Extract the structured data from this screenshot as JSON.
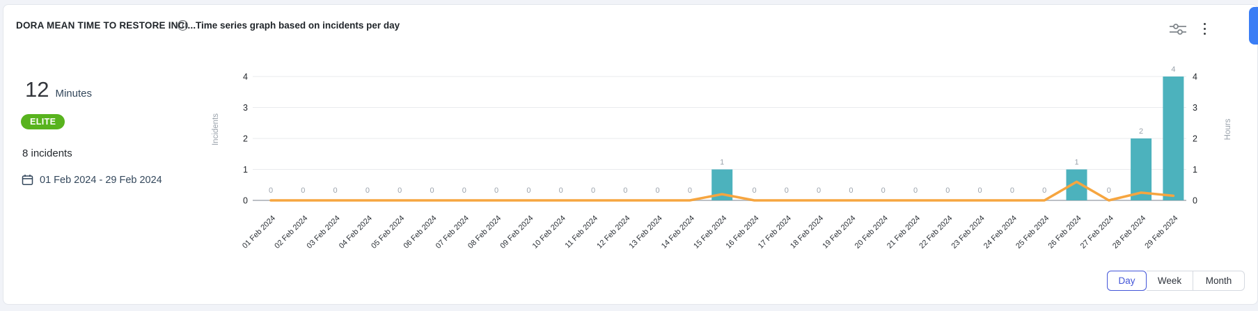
{
  "header": {
    "title": "DORA MEAN TIME TO RESTORE INCI...",
    "info_icon": "i",
    "subtitle": "Time series graph based on incidents per day"
  },
  "summary": {
    "value": "12",
    "unit": "Minutes",
    "badge": "ELITE",
    "badge_color": "#58b31e",
    "incidents": "8 incidents",
    "date_range": "01 Feb 2024 - 29 Feb 2024"
  },
  "controls": {
    "granularity": [
      {
        "label": "Day",
        "selected": true
      },
      {
        "label": "Week",
        "selected": false
      },
      {
        "label": "Month",
        "selected": false
      }
    ]
  },
  "chart_data": {
    "type": "bar",
    "title": "Time series graph based on incidents per day",
    "categories": [
      "01 Feb 2024",
      "02 Feb 2024",
      "03 Feb 2024",
      "04 Feb 2024",
      "05 Feb 2024",
      "06 Feb 2024",
      "07 Feb 2024",
      "08 Feb 2024",
      "09 Feb 2024",
      "10 Feb 2024",
      "11 Feb 2024",
      "12 Feb 2024",
      "13 Feb 2024",
      "14 Feb 2024",
      "15 Feb 2024",
      "16 Feb 2024",
      "17 Feb 2024",
      "18 Feb 2024",
      "19 Feb 2024",
      "20 Feb 2024",
      "21 Feb 2024",
      "22 Feb 2024",
      "23 Feb 2024",
      "24 Feb 2024",
      "25 Feb 2024",
      "26 Feb 2024",
      "27 Feb 2024",
      "28 Feb 2024",
      "29 Feb 2024"
    ],
    "series": [
      {
        "name": "Incidents",
        "type": "bar",
        "axis": "left",
        "color": "#4cb2bd",
        "values": [
          0,
          0,
          0,
          0,
          0,
          0,
          0,
          0,
          0,
          0,
          0,
          0,
          0,
          0,
          1,
          0,
          0,
          0,
          0,
          0,
          0,
          0,
          0,
          0,
          0,
          1,
          0,
          2,
          4
        ]
      },
      {
        "name": "Hours",
        "type": "line",
        "axis": "right",
        "color": "#f6a53f",
        "values": [
          0,
          0,
          0,
          0,
          0,
          0,
          0,
          0,
          0,
          0,
          0,
          0,
          0,
          0,
          0.2,
          0,
          0,
          0,
          0,
          0,
          0,
          0,
          0,
          0,
          0,
          0.6,
          0,
          0.25,
          0.15
        ]
      }
    ],
    "ylabel_left": "Incidents",
    "ylabel_right": "Hours",
    "yticks": [
      0,
      1,
      2,
      3,
      4
    ],
    "ylim": [
      0,
      4
    ],
    "grid": true,
    "point_labels_color": "#9aa2ab"
  }
}
